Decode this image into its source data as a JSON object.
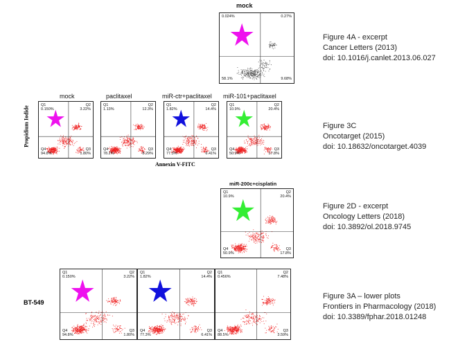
{
  "rows": [
    {
      "label": "mock",
      "panels": [
        {
          "title": "mock",
          "q1": "0.024%",
          "q2": "0.27%",
          "q3": "9.68%",
          "q4": "58.1%",
          "star": "magenta",
          "dots": "gray"
        }
      ],
      "reference": [
        "Figure 4A - excerpt",
        "Cancer Letters (2013)",
        "doi: 10.1016/j.canlet.2013.06.027"
      ]
    },
    {
      "ylabel": "Propidium Iodide",
      "xlabel": "Annexin V-FITC",
      "panels": [
        {
          "title": "mock",
          "q1": "0.150%",
          "q2": "3.22%",
          "q3": "1.80%",
          "q4": "94.8%",
          "star": "magenta",
          "dots": "red"
        },
        {
          "title": "paclitaxel",
          "q1": "1.13%",
          "q2": "12.3%",
          "q3": "8.29%",
          "q4": "78.2%",
          "star": "",
          "dots": "red"
        },
        {
          "title": "miR-ctr+paclitaxel",
          "q1": "1.82%",
          "q2": "14.4%",
          "q3": "6.41%",
          "q4": "77.3%",
          "star": "blue",
          "dots": "red"
        },
        {
          "title": "miR-101+paclitaxel",
          "q1": "10.9%",
          "q2": "20.4%",
          "q3": "17.8%",
          "q4": "50.9%",
          "star": "green",
          "dots": "red"
        }
      ],
      "reference": [
        "Figure 3C",
        "Oncotarget (2015)",
        "doi: 10.18632/oncotarget.4039"
      ]
    },
    {
      "panels": [
        {
          "title": "miR-200c+cisplatin",
          "q1": "10.9%",
          "q2": "20.4%",
          "q3": "17.8%",
          "q4": "50.9%",
          "star": "green",
          "dots": "red"
        }
      ],
      "reference": [
        "Figure 2D - excerpt",
        "Oncology Letters (2018)",
        "doi: 10.3892/ol.2018.9745"
      ]
    },
    {
      "rowlabel": "BT-549",
      "panels": [
        {
          "title": "",
          "q1": "0.150%",
          "q2": "3.22%",
          "q3": "1.80%",
          "q4": "94.8%",
          "star": "magenta",
          "dots": "red"
        },
        {
          "title": "",
          "q1": "1.82%",
          "q2": "14.4%",
          "q3": "6.41%",
          "q4": "77.3%",
          "star": "blue",
          "dots": "red"
        },
        {
          "title": "",
          "q1": "0.456%",
          "q2": "7.48%",
          "q3": "3.59%",
          "q4": "88.5%",
          "star": "",
          "dots": "red"
        }
      ],
      "reference": [
        "Figure 3A – lower plots",
        "Frontiers in Pharmacology (2018)",
        "doi: 10.3389/fphar.2018.01248"
      ]
    }
  ],
  "quadrant_names": [
    "Q1",
    "Q2",
    "Q3",
    "Q4"
  ],
  "star_colors": {
    "magenta": "#ee11ee",
    "blue": "#1111dd",
    "green": "#33ee33"
  },
  "dot_colors": {
    "red": "#ee2222",
    "gray": "#555555"
  }
}
